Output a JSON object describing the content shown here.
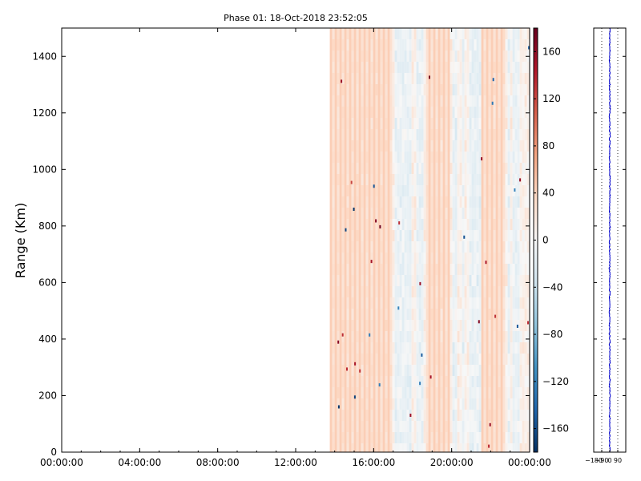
{
  "chart_data": [
    {
      "type": "heatmap",
      "title": "Phase 01: 18-Oct-2018 23:52:05",
      "xlabel": "",
      "ylabel": "Range (Km)",
      "x_ticks": [
        "00:00:00",
        "04:00:00",
        "08:00:00",
        "12:00:00",
        "16:00:00",
        "20:00:00",
        "00:00:00"
      ],
      "y_ticks": [
        0,
        200,
        400,
        600,
        800,
        1000,
        1200,
        1400
      ],
      "ylim": [
        0,
        1500
      ],
      "xlim_hours": [
        0,
        24
      ],
      "data_start_hour": 13.75,
      "data_end_hour": 24,
      "stripe_bands_hours": [
        [
          13.75,
          16.9
        ],
        [
          18.6,
          19.8
        ],
        [
          21.5,
          22.7
        ]
      ],
      "colorbar": {
        "ticks": [
          -160,
          -120,
          -80,
          -40,
          0,
          40,
          80,
          120,
          160
        ],
        "range": [
          -180,
          180
        ],
        "colormap": [
          "#053061",
          "#2166ac",
          "#4393c3",
          "#92c5de",
          "#d1e5f0",
          "#f7f7f7",
          "#fddbc7",
          "#f4a582",
          "#d6604d",
          "#b2182b",
          "#67001f"
        ]
      },
      "grid": false
    },
    {
      "type": "line",
      "title": "",
      "xlabel": "",
      "ylabel": "",
      "x_ticks": [
        -180,
        -90,
        0,
        90
      ],
      "xlim": [
        -180,
        180
      ],
      "ylim": [
        0,
        1500
      ],
      "series_color": "#0000cc",
      "profile_mean": 0,
      "grid": true
    }
  ]
}
